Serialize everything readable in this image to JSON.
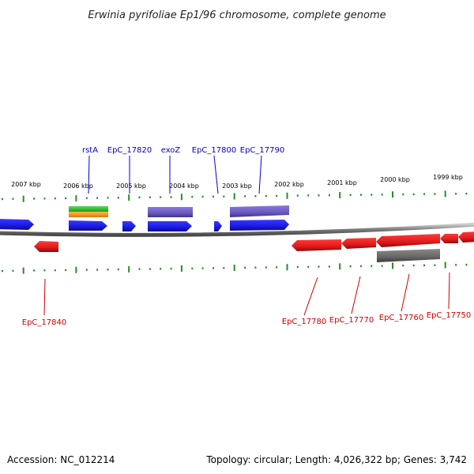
{
  "header": {
    "title": "Erwinia pyrifoliae Ep1/96 chromosome, complete genome"
  },
  "footer": {
    "accession": "Accession: NC_012214",
    "summary": "Topology: circular; Length: 4,026,322 bp; Genes: 3,742"
  },
  "colors": {
    "forward_cds": "#1a1aee",
    "reverse_cds": "#ee1a1a",
    "forward_feature_purple": "#7b68c8",
    "reverse_feature_gray": "#707070",
    "rna_green": "#33bb33",
    "rna_orange": "#ff9922",
    "tick_green": "#2a8a2a",
    "backbone": "#8a8a8a",
    "forward_label": "#0000cc",
    "reverse_label": "#cc0000"
  },
  "ruler": {
    "ticks": [
      "2007 kbp",
      "2006 kbp",
      "2005 kbp",
      "2004 kbp",
      "2003 kbp",
      "2002 kbp",
      "2001 kbp",
      "2000 kbp",
      "1999 kbp"
    ]
  },
  "genes": {
    "forward_labels": [
      "rstA",
      "EpC_17820",
      "exoZ",
      "EpC_17800",
      "EpC_17790"
    ],
    "reverse_labels": [
      "EpC_17840",
      "EpC_17780",
      "EpC_17770",
      "EpC_17760",
      "EpC_17750"
    ]
  }
}
